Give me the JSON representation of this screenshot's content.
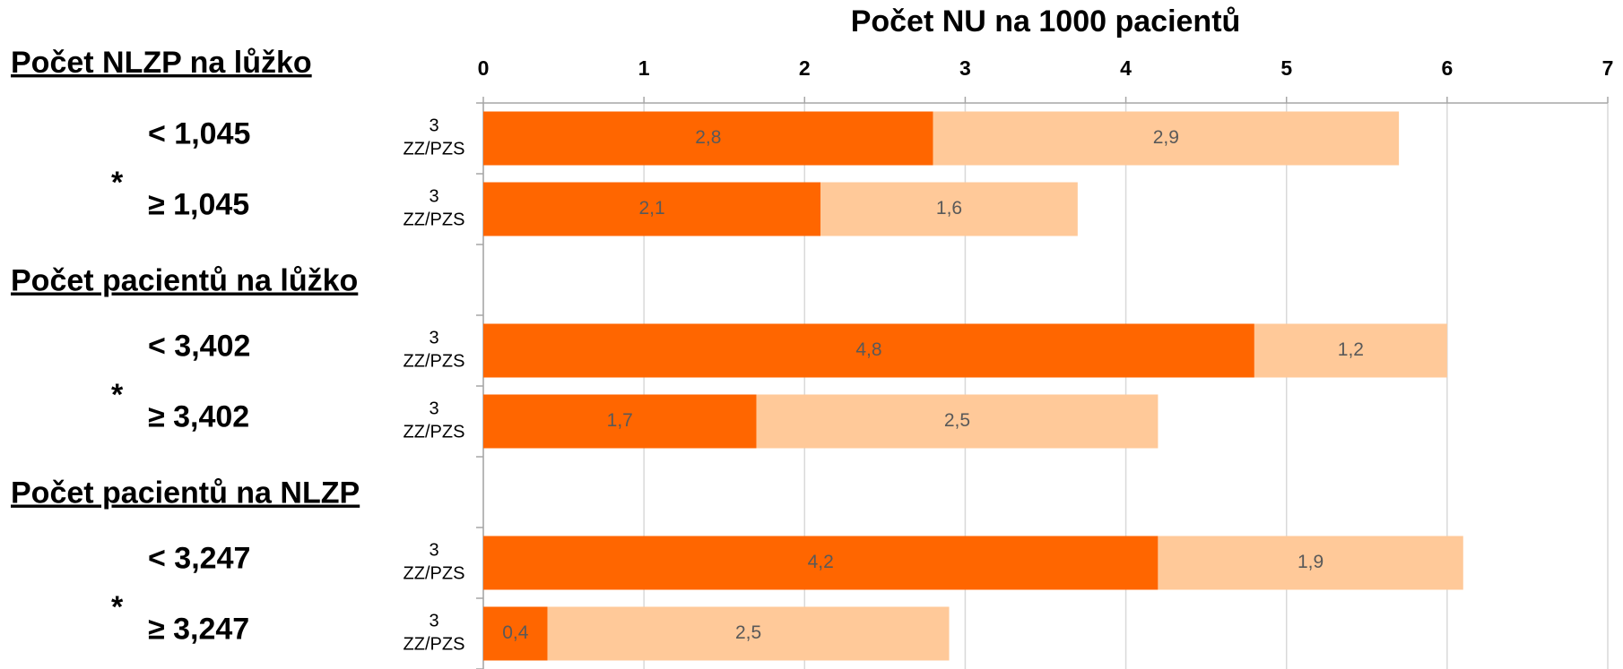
{
  "chart_data": {
    "type": "stacked_barh",
    "title": "Počet NU na 1000 pacientů",
    "categories": [
      "3 ZZ/PZS",
      "3 ZZ/PZS",
      null,
      "3 ZZ/PZS",
      "3 ZZ/PZS",
      null,
      "3 ZZ/PZS",
      "3 ZZ/PZS"
    ],
    "series": [
      {
        "color": "#ff6600",
        "values": [
          2.8,
          2.1,
          null,
          4.8,
          1.7,
          null,
          4.2,
          0.4
        ],
        "value_labels": [
          "2,8",
          "2,1",
          null,
          "4,8",
          "1,7",
          null,
          "4,2",
          "0,4"
        ]
      },
      {
        "color": "#ffc999",
        "values": [
          2.9,
          1.6,
          null,
          1.2,
          2.5,
          null,
          1.9,
          2.5
        ],
        "value_labels": [
          "2,9",
          "1,6",
          null,
          "1,2",
          "2,5",
          null,
          "1,9",
          "2,5"
        ]
      }
    ],
    "xlim": [
      0,
      7
    ],
    "xticks": [
      0,
      1,
      2,
      3,
      4,
      5,
      6,
      7
    ],
    "grid": true,
    "groups": [
      {
        "title": "Počet NLZP na lůžko",
        "items": [
          "< 1,045",
          "≥ 1,045"
        ],
        "marker": "*"
      },
      {
        "title": "Počet pacientů na lůžko",
        "items": [
          "< 3,402",
          "≥ 3,402"
        ],
        "marker": "*"
      },
      {
        "title": "Počet pacientů na NLZP",
        "items": [
          "< 3,247",
          "≥ 3,247"
        ],
        "marker": "*"
      }
    ]
  }
}
